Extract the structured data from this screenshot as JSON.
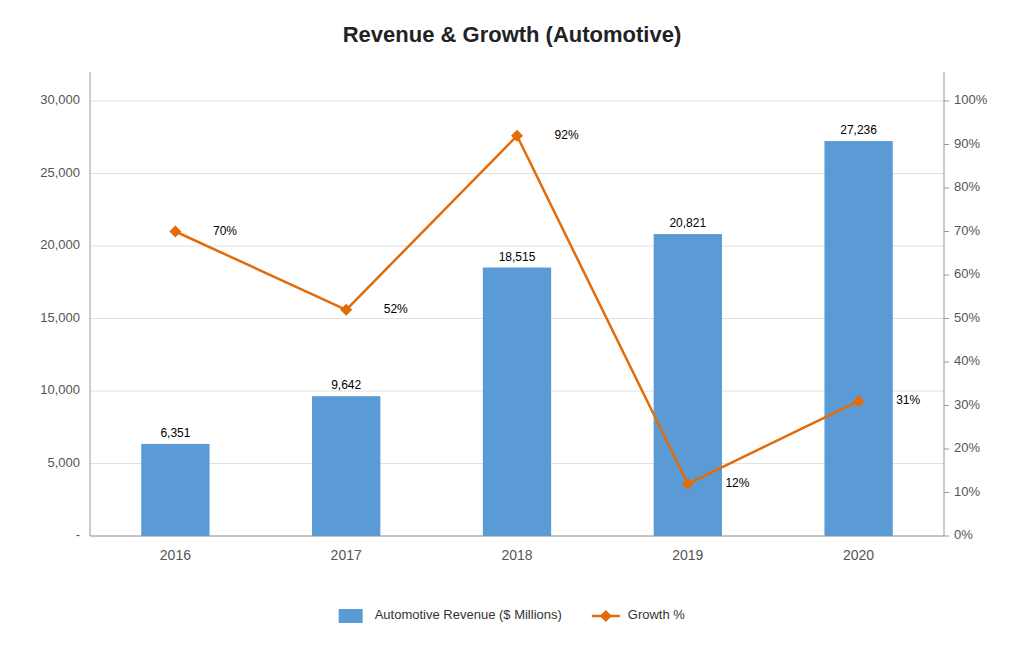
{
  "chart_data": {
    "type": "bar",
    "title": "Revenue & Growth (Automotive)",
    "categories": [
      "2016",
      "2017",
      "2018",
      "2019",
      "2020"
    ],
    "series": [
      {
        "name": "Automotive Revenue ($ Millions)",
        "type": "bar",
        "color": "#5b9bd5",
        "values": [
          6351,
          9642,
          18515,
          20821,
          27236
        ],
        "value_labels": [
          "6,351",
          "9,642",
          "18,515",
          "20,821",
          "27,236"
        ]
      },
      {
        "name": "Growth %",
        "type": "line",
        "axis": "y2",
        "color": "#e26b0a",
        "marker": "diamond",
        "values": [
          0.7,
          0.52,
          0.92,
          0.12,
          0.31
        ],
        "value_labels": [
          "70%",
          "52%",
          "92%",
          "12%",
          "31%"
        ]
      }
    ],
    "ylim": [
      0,
      32000
    ],
    "yticks": [
      {
        "value": 0,
        "label": "-"
      },
      {
        "value": 5000,
        "label": "5,000"
      },
      {
        "value": 10000,
        "label": "10,000"
      },
      {
        "value": 15000,
        "label": "15,000"
      },
      {
        "value": 20000,
        "label": "20,000"
      },
      {
        "value": 25000,
        "label": "25,000"
      },
      {
        "value": 30000,
        "label": "30,000"
      }
    ],
    "y2lim": [
      0,
      1.0667
    ],
    "y2ticks": [
      {
        "value": 0.0,
        "label": "0%"
      },
      {
        "value": 0.1,
        "label": "10%"
      },
      {
        "value": 0.2,
        "label": "20%"
      },
      {
        "value": 0.3,
        "label": "30%"
      },
      {
        "value": 0.4,
        "label": "40%"
      },
      {
        "value": 0.5,
        "label": "50%"
      },
      {
        "value": 0.6,
        "label": "60%"
      },
      {
        "value": 0.7,
        "label": "70%"
      },
      {
        "value": 0.8,
        "label": "80%"
      },
      {
        "value": 0.9,
        "label": "90%"
      },
      {
        "value": 1.0,
        "label": "100%"
      }
    ],
    "grid": true,
    "data_labels": true,
    "legend": "bottom"
  }
}
